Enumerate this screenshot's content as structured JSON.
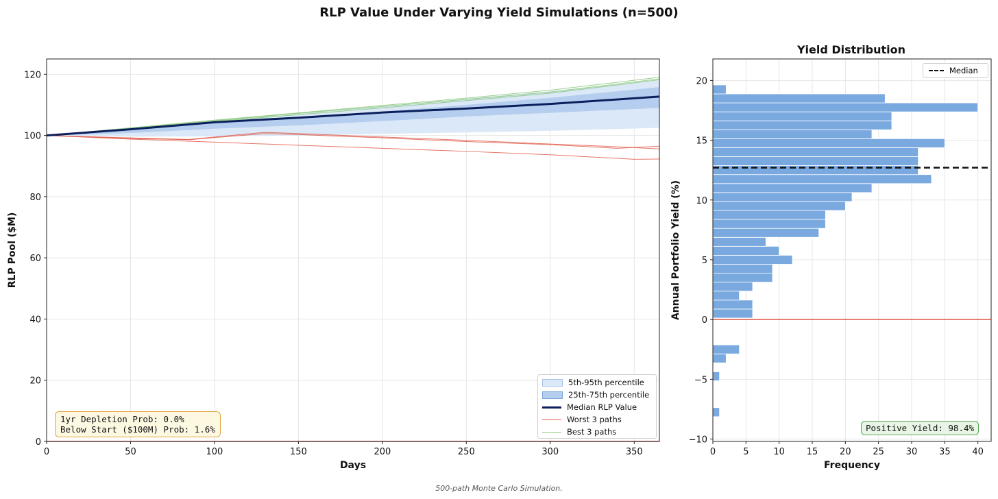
{
  "figure": {
    "suptitle": "RLP Value Under Varying Yield Simulations (n=500)",
    "caption": "500-path Monte Carlo Simulation."
  },
  "chart_data": [
    {
      "type": "line",
      "xlabel": "Days",
      "ylabel": "RLP Pool ($M)",
      "xlim": [
        0,
        365
      ],
      "ylim": [
        0,
        125
      ],
      "xticks": [
        0,
        50,
        100,
        150,
        200,
        250,
        300,
        350
      ],
      "yticks": [
        0,
        20,
        40,
        60,
        80,
        100,
        120
      ],
      "grid": true,
      "legend_position": "lower-right",
      "bands": [
        {
          "name": "5th-95th percentile",
          "color": "#dbe8f7",
          "x": [
            0,
            50,
            100,
            150,
            200,
            250,
            300,
            365
          ],
          "lower": [
            100,
            99.6,
            99.7,
            100.0,
            100.5,
            101.0,
            101.5,
            102.5
          ],
          "upper": [
            100,
            102.3,
            104.7,
            107.0,
            109.5,
            112.0,
            114.5,
            118.0
          ]
        },
        {
          "name": "25th-75th percentile",
          "color": "#b5cdee",
          "x": [
            0,
            50,
            100,
            150,
            200,
            250,
            300,
            365
          ],
          "lower": [
            100,
            100.8,
            102.2,
            103.3,
            104.7,
            106.2,
            107.4,
            109.0
          ],
          "upper": [
            100,
            102.0,
            104.5,
            106.0,
            107.8,
            110.0,
            112.3,
            115.8
          ]
        }
      ],
      "series": [
        {
          "name": "Median RLP Value",
          "color": "#0b1f5c",
          "width": 3,
          "x": [
            0,
            50,
            100,
            130,
            150,
            200,
            250,
            300,
            365
          ],
          "values": [
            100,
            102.0,
            104.3,
            105.2,
            105.8,
            107.5,
            108.8,
            110.3,
            112.7
          ]
        },
        {
          "name": "Worst 3 paths",
          "color": "#e05a4a",
          "width": 1,
          "x": [
            0,
            50,
            85,
            100,
            130,
            150,
            200,
            250,
            300,
            340,
            365
          ],
          "values": [
            100,
            99.2,
            98.7,
            99.5,
            101.0,
            100.6,
            99.5,
            98.4,
            97.2,
            96.3,
            95.6
          ]
        },
        {
          "name": "Worst 3 paths",
          "color": "#e05a4a",
          "width": 1,
          "x": [
            0,
            50,
            85,
            100,
            130,
            150,
            200,
            250,
            300,
            340,
            365
          ],
          "values": [
            100,
            99.0,
            98.6,
            99.3,
            100.6,
            100.3,
            99.2,
            98.0,
            97.0,
            95.8,
            96.5
          ]
        },
        {
          "name": "Worst 3 paths",
          "color": "#e05a4a",
          "width": 1,
          "x": [
            0,
            50,
            100,
            150,
            200,
            250,
            300,
            350,
            365
          ],
          "values": [
            100,
            98.8,
            97.8,
            96.8,
            95.8,
            94.8,
            93.7,
            92.2,
            92.3
          ]
        },
        {
          "name": "Best 3 paths",
          "color": "#88c77a",
          "width": 1,
          "x": [
            0,
            50,
            100,
            150,
            200,
            250,
            300,
            365
          ],
          "values": [
            100,
            102.5,
            105.0,
            107.4,
            109.8,
            112.2,
            114.8,
            119.0
          ]
        },
        {
          "name": "Best 3 paths",
          "color": "#88c77a",
          "width": 1,
          "x": [
            0,
            50,
            100,
            150,
            200,
            250,
            300,
            365
          ],
          "values": [
            100,
            102.4,
            104.8,
            107.2,
            109.5,
            111.8,
            114.2,
            118.5
          ]
        },
        {
          "name": "Best 3 paths",
          "color": "#88c77a",
          "width": 1,
          "x": [
            0,
            50,
            100,
            150,
            200,
            250,
            300,
            365
          ],
          "values": [
            100,
            102.2,
            104.6,
            106.8,
            109.0,
            111.4,
            113.8,
            118.2
          ]
        }
      ],
      "legend": [
        {
          "label": "5th-95th percentile",
          "kind": "band",
          "color": "#dbe8f7"
        },
        {
          "label": "25th-75th percentile",
          "kind": "band",
          "color": "#b5cdee"
        },
        {
          "label": "Median RLP Value",
          "kind": "line",
          "color": "#0b1f5c"
        },
        {
          "label": "Worst 3 paths",
          "kind": "line",
          "color": "#e05a4a"
        },
        {
          "label": "Best 3 paths",
          "kind": "line",
          "color": "#88c77a"
        }
      ],
      "annotations": [
        "1yr Depletion Prob: 0.0%",
        "Below Start ($100M) Prob: 1.6%"
      ]
    },
    {
      "type": "bar",
      "orientation": "horizontal",
      "title": "Yield Distribution",
      "xlabel": "Frequency",
      "ylabel": "Annual Portfolio Yield (%)",
      "xlim": [
        0,
        42
      ],
      "ylim": [
        -10.2,
        21.8
      ],
      "xticks": [
        0,
        5,
        10,
        15,
        20,
        25,
        30,
        35,
        40
      ],
      "yticks": [
        -10,
        -5,
        0,
        5,
        10,
        15,
        20
      ],
      "bar_color": "#7aa9e0",
      "bin_width": 0.75,
      "bins": [
        {
          "y": -7.75,
          "count": 1
        },
        {
          "y": -4.75,
          "count": 1
        },
        {
          "y": -3.25,
          "count": 2
        },
        {
          "y": -2.5,
          "count": 4
        },
        {
          "y": 0.5,
          "count": 6
        },
        {
          "y": 1.25,
          "count": 6
        },
        {
          "y": 2.0,
          "count": 4
        },
        {
          "y": 2.75,
          "count": 6
        },
        {
          "y": 3.5,
          "count": 9
        },
        {
          "y": 4.25,
          "count": 9
        },
        {
          "y": 5.0,
          "count": 12
        },
        {
          "y": 5.75,
          "count": 10
        },
        {
          "y": 6.5,
          "count": 8
        },
        {
          "y": 7.25,
          "count": 16
        },
        {
          "y": 8.0,
          "count": 17
        },
        {
          "y": 8.75,
          "count": 17
        },
        {
          "y": 9.5,
          "count": 20
        },
        {
          "y": 10.25,
          "count": 21
        },
        {
          "y": 11.0,
          "count": 24
        },
        {
          "y": 11.75,
          "count": 33
        },
        {
          "y": 12.5,
          "count": 31
        },
        {
          "y": 13.25,
          "count": 31
        },
        {
          "y": 14.0,
          "count": 31
        },
        {
          "y": 14.75,
          "count": 35
        },
        {
          "y": 15.5,
          "count": 24
        },
        {
          "y": 16.25,
          "count": 27
        },
        {
          "y": 17.0,
          "count": 27
        },
        {
          "y": 17.75,
          "count": 40
        },
        {
          "y": 18.5,
          "count": 26
        },
        {
          "y": 19.25,
          "count": 2
        }
      ],
      "median_line": {
        "label": "Median",
        "value": 12.7,
        "color": "#111111"
      },
      "zero_line": {
        "value": 0,
        "color": "#e05a4a"
      },
      "legend_position": "top-right",
      "annotations": [
        "Positive Yield: 98.4%"
      ]
    }
  ]
}
